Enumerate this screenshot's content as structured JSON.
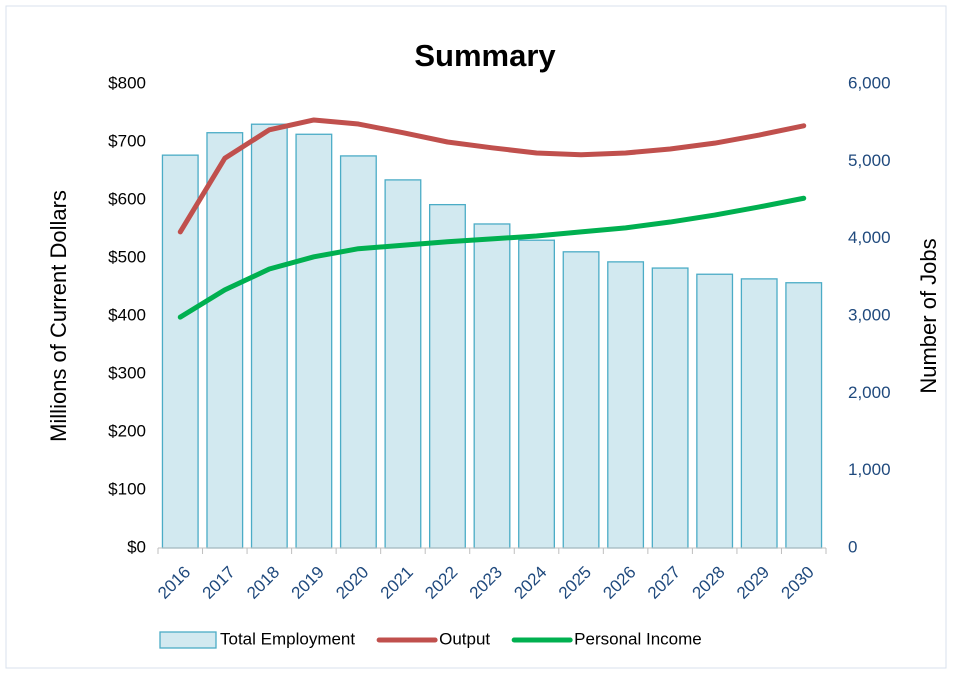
{
  "chart_data": {
    "type": "bar-line",
    "title": "Summary",
    "y_label": "Millions of Current Dollars",
    "y2_label": "Number of Jobs",
    "categories": [
      "2016",
      "2017",
      "2018",
      "2019",
      "2020",
      "2021",
      "2022",
      "2023",
      "2024",
      "2025",
      "2026",
      "2027",
      "2028",
      "2029",
      "2030"
    ],
    "series": [
      {
        "name": "Total Employment",
        "type": "bar",
        "axis": "y2",
        "color": "#d2e9f0",
        "edge_color": "#4bacc6",
        "values": [
          5080,
          5370,
          5480,
          5350,
          5070,
          4760,
          4440,
          4190,
          3980,
          3830,
          3700,
          3620,
          3540,
          3480,
          3430
        ]
      },
      {
        "name": "Output",
        "type": "line",
        "color": "#c0504d",
        "values": [
          545,
          672,
          721,
          738,
          731,
          716,
          700,
          690,
          681,
          678,
          681,
          688,
          698,
          712,
          728
        ]
      },
      {
        "name": "Personal Income",
        "type": "line",
        "color": "#00b050",
        "values": [
          398,
          445,
          481,
          502,
          516,
          522,
          528,
          533,
          538,
          545,
          552,
          562,
          574,
          588,
          603
        ]
      }
    ],
    "ylim": [
      0,
      800
    ],
    "yticks": [
      {
        "value": 0,
        "label": "$0"
      },
      {
        "value": 100,
        "label": "$100"
      },
      {
        "value": 200,
        "label": "$200"
      },
      {
        "value": 300,
        "label": "$300"
      },
      {
        "value": 400,
        "label": "$400"
      },
      {
        "value": 500,
        "label": "$500"
      },
      {
        "value": 600,
        "label": "$600"
      },
      {
        "value": 700,
        "label": "$700"
      },
      {
        "value": 800,
        "label": "$800"
      }
    ],
    "y2lim": [
      0,
      6000
    ],
    "y2ticks": [
      0,
      {
        "value": 1000,
        "label": "1,000"
      },
      {
        "value": 2000,
        "label": "2,000"
      },
      {
        "value": 3000,
        "label": "3,000"
      },
      {
        "value": 4000,
        "label": "4,000"
      },
      {
        "value": 5000,
        "label": "5,000"
      },
      {
        "value": 6000,
        "label": "6,000"
      }
    ],
    "grid": false,
    "legend": "bottom"
  }
}
